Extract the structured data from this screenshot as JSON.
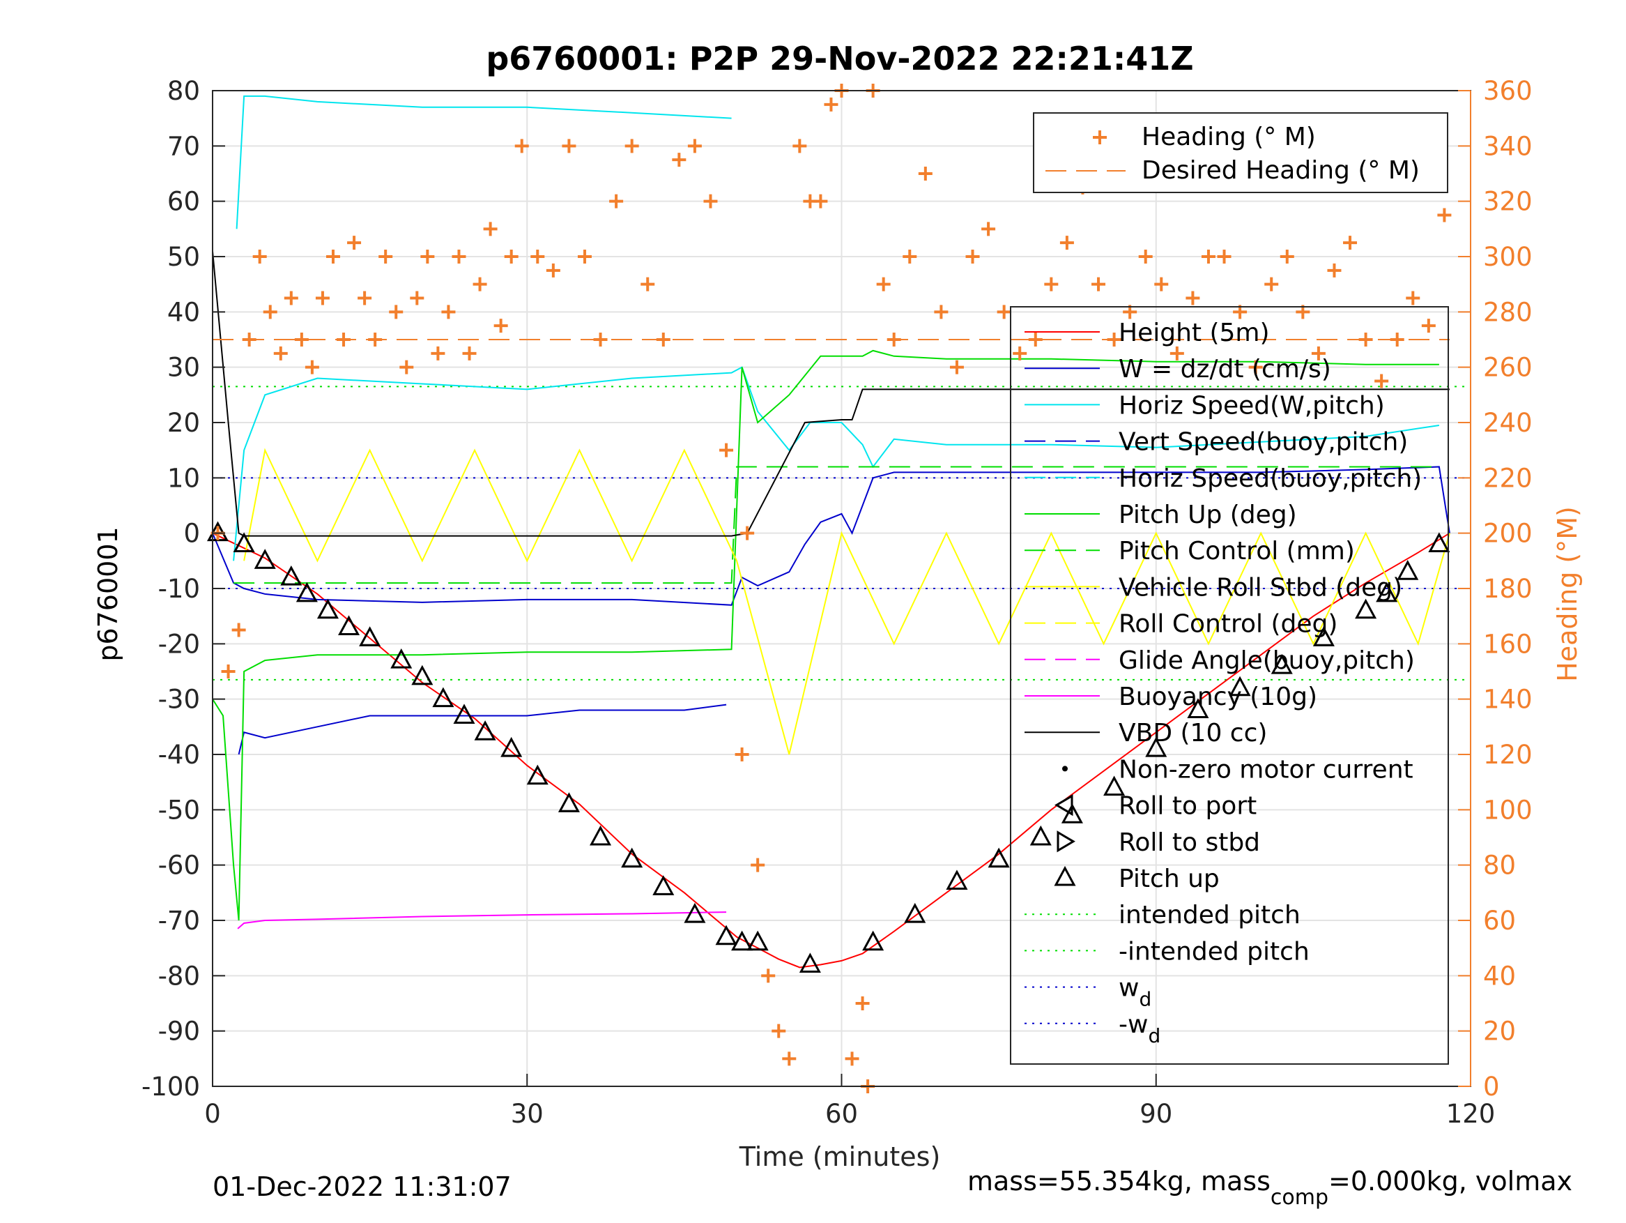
{
  "title": "p6760001: P2P 29-Nov-2022 22:21:41Z",
  "footer_left": "01-Dec-2022 11:31:07",
  "footer_right_prefix": "mass=55.354kg, mass",
  "footer_right_sub": "comp",
  "footer_right_suffix": "=0.000kg, volmax",
  "colors": {
    "heading": "#f27f2c",
    "height": "#ff0000",
    "w": "#0000cc",
    "horiz": "#00e5ee",
    "pitch": "#00dd00",
    "roll": "#ffff00",
    "glide": "#ff00ff",
    "vbd": "#000000"
  },
  "chart_data": {
    "type": "line",
    "title": "p6760001: P2P 29-Nov-2022 22:21:41Z",
    "xlabel": "Time (minutes)",
    "ylabel": "p6760001",
    "y2label": "Heading (°M)",
    "xlim": [
      0,
      120
    ],
    "ylim": [
      -100,
      80
    ],
    "y2lim": [
      0,
      360
    ],
    "xticks": [
      0,
      30,
      60,
      90,
      120
    ],
    "yticks": [
      -100,
      -90,
      -80,
      -70,
      -60,
      -50,
      -40,
      -30,
      -20,
      -10,
      0,
      10,
      20,
      30,
      40,
      50,
      60,
      70,
      80
    ],
    "y2ticks": [
      0,
      20,
      40,
      60,
      80,
      100,
      120,
      140,
      160,
      180,
      200,
      220,
      240,
      260,
      280,
      300,
      320,
      340,
      360
    ],
    "grid": true,
    "legend_top": {
      "placement": "top-right",
      "entries": [
        "Heading (° M)",
        "Desired Heading (° M)"
      ]
    },
    "legend_main": {
      "placement": "right",
      "entries": [
        "Height (5m)",
        "W = dz/dt (cm/s)",
        "Horiz Speed(W,pitch)",
        "Vert Speed(buoy,pitch)",
        "Horiz Speed(buoy,pitch)",
        "Pitch Up (deg)",
        "Pitch Control (mm)",
        "Vehicle Roll Stbd (deg)",
        "Roll Control (deg)",
        "Glide Angle(buoy,pitch)",
        "Buoyancy (10g)",
        "VBD (10 cc)",
        "Non-zero motor current",
        "Roll to port",
        "Roll to stbd",
        "Pitch up",
        "intended pitch",
        "-intended pitch",
        "w_d",
        "-w_d"
      ]
    },
    "reference_lines": {
      "intended_pitch": 26.5,
      "neg_intended_pitch": -26.5,
      "w_d": 10,
      "neg_w_d": -10,
      "desired_heading": 270
    },
    "series": [
      {
        "name": "Height (5m)",
        "axis": "left",
        "x": [
          0,
          5,
          10,
          15,
          20,
          25,
          30,
          35,
          40,
          45,
          50,
          52,
          54,
          56,
          58,
          60,
          62,
          65,
          70,
          75,
          80,
          85,
          90,
          95,
          100,
          105,
          110,
          115,
          118
        ],
        "y": [
          0,
          -4.5,
          -11,
          -19,
          -27,
          -33.5,
          -42,
          -49,
          -58,
          -65,
          -73,
          -75,
          -77,
          -78.5,
          -78,
          -77.3,
          -76,
          -72,
          -65,
          -58,
          -50,
          -43,
          -36,
          -29,
          -22,
          -15,
          -9,
          -3.5,
          0
        ]
      },
      {
        "name": "W = dz/dt (cm/s)",
        "axis": "left",
        "x": [
          0,
          2,
          3,
          5,
          10,
          20,
          30,
          40,
          49.5,
          50.5,
          52,
          55,
          56.5,
          58,
          60,
          61,
          62,
          63,
          65,
          70,
          80,
          90,
          100,
          110,
          117,
          118
        ],
        "y": [
          0,
          -9,
          -10,
          -11,
          -12,
          -12.5,
          -12,
          -12,
          -13,
          -8,
          -9.5,
          -7,
          -2,
          2,
          3.5,
          0,
          5,
          10,
          11,
          11,
          11,
          11,
          11,
          11.5,
          12,
          0
        ]
      },
      {
        "name": "Vert Speed(buoy,pitch)",
        "axis": "left",
        "x": [
          2.5,
          3,
          5,
          10,
          15,
          20,
          25,
          30,
          35,
          40,
          45,
          49
        ],
        "y": [
          -40,
          -36,
          -37,
          -35,
          -33,
          -33,
          -33,
          -33,
          -32,
          -32,
          -32,
          -31
        ]
      },
      {
        "name": "Horiz Speed(W,pitch)",
        "axis": "left",
        "x": [
          2,
          3,
          5,
          10,
          20,
          30,
          40,
          49.5,
          50.5,
          52,
          55,
          57,
          60,
          62,
          63,
          65,
          70,
          80,
          90,
          100,
          110,
          117
        ],
        "y": [
          -5,
          15,
          25,
          28,
          27,
          26,
          28,
          29,
          30,
          22,
          15,
          20,
          20,
          16,
          12,
          17,
          16,
          16,
          15.5,
          16.5,
          17.5,
          19.5
        ]
      },
      {
        "name": "Horiz Speed(buoy,pitch)",
        "axis": "left",
        "x": [
          2.3,
          3,
          5,
          10,
          20,
          30,
          40,
          49.5
        ],
        "y": [
          55,
          79,
          79,
          78,
          77,
          77,
          76,
          75
        ]
      },
      {
        "name": "Pitch Up (deg)",
        "axis": "left",
        "x": [
          0,
          1,
          2,
          2.5,
          3,
          5,
          10,
          20,
          30,
          40,
          49.5,
          50.5,
          52,
          55,
          58,
          60,
          62,
          63,
          65,
          70,
          80,
          90,
          100,
          110,
          117
        ],
        "y": [
          -30,
          -33,
          -60,
          -70,
          -25,
          -23,
          -22,
          -22,
          -21.5,
          -21.5,
          -21,
          30,
          20,
          25,
          32,
          32,
          32,
          33,
          32,
          31.5,
          31.5,
          31,
          31,
          30.5,
          30.5
        ]
      },
      {
        "name": "Pitch Control (mm)",
        "axis": "left",
        "x": [
          2,
          5,
          20,
          40,
          49.5,
          50,
          60,
          80,
          100,
          117
        ],
        "y": [
          -9,
          -9,
          -9,
          -9,
          -9,
          12,
          12,
          12,
          12,
          12
        ]
      },
      {
        "name": "Roll Control (deg)",
        "axis": "left",
        "x": [
          3,
          5,
          10,
          15,
          20,
          25,
          30,
          35,
          40,
          45,
          50,
          55,
          60,
          65,
          70,
          75,
          80,
          85,
          90,
          95,
          100,
          105,
          110,
          115,
          118
        ],
        "y": [
          -5,
          15,
          -5,
          15,
          -5,
          15,
          -5,
          15,
          -5,
          15,
          -5,
          -40,
          0,
          -20,
          0,
          -20,
          0,
          -20,
          0,
          -20,
          0,
          -20,
          0,
          -20,
          0
        ]
      },
      {
        "name": "Buoyancy (10g)",
        "axis": "left",
        "x": [
          2.4,
          3,
          5,
          10,
          20,
          30,
          40,
          49
        ],
        "y": [
          -71.5,
          -70.5,
          -70,
          -69.8,
          -69.3,
          -69,
          -68.8,
          -68.5
        ]
      },
      {
        "name": "VBD (10 cc)",
        "axis": "left",
        "x": [
          0,
          1.5,
          2.5,
          3,
          10,
          30,
          49.5,
          51,
          56.5,
          60,
          61,
          62,
          118
        ],
        "y": [
          51,
          20,
          0,
          -0.5,
          -0.5,
          -0.5,
          -0.5,
          0,
          20,
          20.5,
          20.5,
          26,
          26
        ]
      },
      {
        "name": "Heading (° M)",
        "axis": "right",
        "marker": "+",
        "x": [
          0.5,
          1.5,
          2.5,
          3.5,
          4.5,
          5.5,
          6.5,
          7.5,
          8.5,
          9.5,
          10.5,
          11.5,
          12.5,
          13.5,
          14.5,
          15.5,
          16.5,
          17.5,
          18.5,
          19.5,
          20.5,
          21.5,
          22.5,
          23.5,
          24.5,
          25.5,
          26.5,
          27.5,
          28.5,
          29.5,
          31,
          32.5,
          34,
          35.5,
          37,
          38.5,
          40,
          41.5,
          43,
          44.5,
          46,
          47.5,
          49,
          50.5,
          51,
          52,
          53,
          54,
          55,
          56,
          57,
          58,
          59,
          60,
          61,
          62,
          62.5,
          63,
          64,
          65,
          66.5,
          68,
          69.5,
          71,
          72.5,
          74,
          75.5,
          77,
          78.5,
          80,
          81.5,
          83,
          84.5,
          86,
          87.5,
          89,
          90.5,
          92,
          93.5,
          95,
          96.5,
          98,
          99.5,
          101,
          102.5,
          104,
          105.5,
          107,
          108.5,
          110,
          111.5,
          113,
          114.5,
          116,
          117.5
        ],
        "y": [
          200,
          150,
          165,
          270,
          300,
          280,
          265,
          285,
          270,
          260,
          285,
          300,
          270,
          305,
          285,
          270,
          300,
          280,
          260,
          285,
          300,
          265,
          280,
          300,
          265,
          290,
          310,
          275,
          300,
          340,
          300,
          295,
          340,
          300,
          270,
          320,
          340,
          290,
          270,
          335,
          340,
          320,
          230,
          120,
          200,
          80,
          40,
          20,
          10,
          340,
          320,
          320,
          355,
          360,
          10,
          30,
          0,
          360,
          290,
          270,
          300,
          330,
          280,
          260,
          300,
          310,
          280,
          265,
          270,
          290,
          305,
          325,
          290,
          270,
          280,
          300,
          290,
          265,
          285,
          300,
          300,
          280,
          260,
          290,
          300,
          280,
          265,
          295,
          305,
          270,
          255,
          270,
          285,
          275,
          315
        ]
      },
      {
        "name": "Desired Heading (° M)",
        "axis": "right",
        "x": [
          0,
          118
        ],
        "y": [
          270,
          270
        ]
      }
    ],
    "markers": {
      "Pitch up": {
        "x": [
          0.5,
          3,
          5,
          7.5,
          9,
          11,
          13,
          15,
          18,
          20,
          22,
          24,
          26,
          28.5,
          31,
          34,
          37,
          40,
          43,
          46,
          49,
          50.5,
          52,
          57,
          63,
          67,
          71,
          75,
          79,
          82,
          86,
          90,
          94,
          98,
          102,
          106,
          110,
          112,
          114,
          117
        ],
        "y": [
          0,
          -2,
          -5,
          -8,
          -11,
          -14,
          -17,
          -19,
          -23,
          -26,
          -30,
          -33,
          -36,
          -39,
          -44,
          -49,
          -55,
          -59,
          -64,
          -69,
          -73,
          -74,
          -74,
          -78,
          -74,
          -69,
          -63,
          -59,
          -55,
          -51,
          -46,
          -39,
          -32,
          -28,
          -24,
          -19,
          -14,
          -11,
          -7,
          -2
        ]
      }
    }
  }
}
